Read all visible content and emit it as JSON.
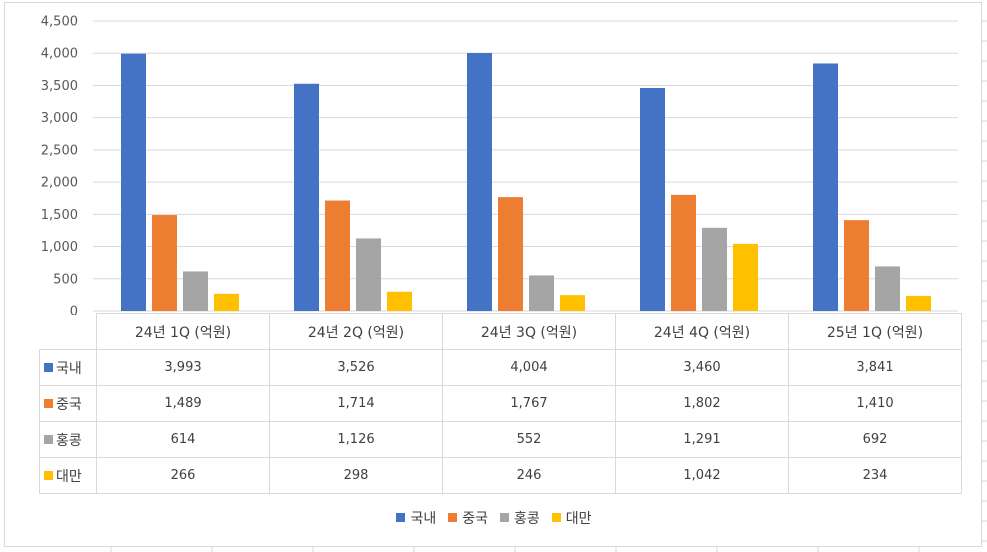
{
  "colors": {
    "series": [
      "#4472C4",
      "#ED7D31",
      "#A5A5A5",
      "#FFC000"
    ],
    "grid": "#d9d9d9",
    "text": "#404040"
  },
  "chart_data": {
    "type": "bar",
    "title": "",
    "xlabel": "",
    "ylabel": "",
    "categories": [
      "24년 1Q (억원)",
      "24년 2Q (억원)",
      "24년 3Q (억원)",
      "24년 4Q (억원)",
      "25년 1Q (억원)"
    ],
    "series": [
      {
        "name": "국내",
        "values": [
          3993,
          3526,
          4004,
          3460,
          3841
        ],
        "labels": [
          "3,993",
          "3,526",
          "4,004",
          "3,460",
          "3,841"
        ]
      },
      {
        "name": "중국",
        "values": [
          1489,
          1714,
          1767,
          1802,
          1410
        ],
        "labels": [
          "1,489",
          "1,714",
          "1,767",
          "1,802",
          "1,410"
        ]
      },
      {
        "name": "홍콩",
        "values": [
          614,
          1126,
          552,
          1291,
          692
        ],
        "labels": [
          "614",
          "1,126",
          "552",
          "1,291",
          "692"
        ]
      },
      {
        "name": "대만",
        "values": [
          266,
          298,
          246,
          1042,
          234
        ],
        "labels": [
          "266",
          "298",
          "246",
          "1,042",
          "234"
        ]
      }
    ],
    "ylim": [
      0,
      4500
    ],
    "yticks": [
      0,
      500,
      1000,
      1500,
      2000,
      2500,
      3000,
      3500,
      4000,
      4500
    ],
    "ytick_labels": [
      "0",
      "500",
      "1,000",
      "1,500",
      "2,000",
      "2,500",
      "3,000",
      "3,500",
      "4,000",
      "4,500"
    ],
    "grid": true,
    "legend": "bottom",
    "data_table": true
  }
}
